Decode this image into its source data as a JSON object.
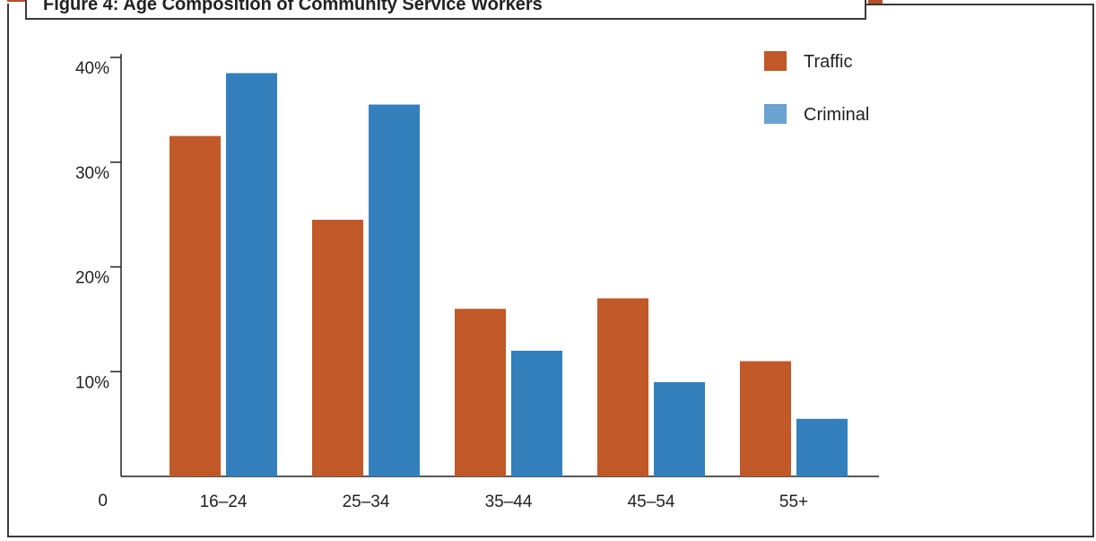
{
  "chart_data": {
    "type": "bar",
    "title": "Figure 4: Age Composition of Community Service Workers",
    "categories": [
      "16–24",
      "25–34",
      "35–44",
      "45–54",
      "55+"
    ],
    "series": [
      {
        "name": "Traffic",
        "color": "#c05828",
        "values": [
          32.5,
          24.5,
          16,
          17,
          11
        ]
      },
      {
        "name": "Criminal",
        "color": "#3380bd",
        "values": [
          38.5,
          35.5,
          12,
          9,
          5.5
        ]
      }
    ],
    "ylim": [
      0,
      40
    ],
    "yticks": [
      {
        "value": 0,
        "label": "0"
      },
      {
        "value": 10,
        "label": "10%"
      },
      {
        "value": 20,
        "label": "20%"
      },
      {
        "value": 30,
        "label": "30%"
      },
      {
        "value": 40,
        "label": "40%"
      }
    ],
    "legend_position": "top-right",
    "legend_swatch_colors": [
      "#c05828",
      "#6aa2d2"
    ],
    "xlabel": "",
    "ylabel": "",
    "grid": false
  }
}
